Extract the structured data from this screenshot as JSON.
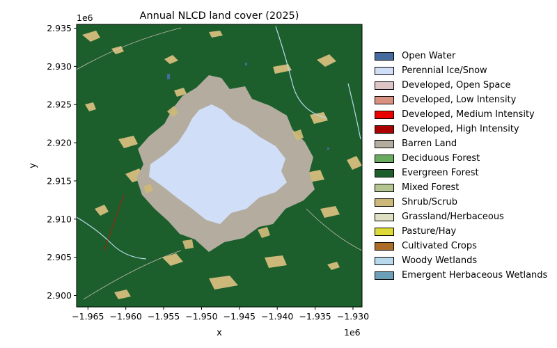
{
  "title": "Annual NLCD land cover (2025)",
  "xlabel": "x",
  "ylabel": "y",
  "x_offset_label": "1e6",
  "y_offset_label": "1e6",
  "chart_data": {
    "type": "heatmap",
    "title": "Annual NLCD land cover (2025)",
    "xlabel": "x",
    "ylabel": "y",
    "x_scale": "1e6",
    "y_scale": "1e6",
    "xlim": [
      -1.9665,
      -1.9288
    ],
    "ylim": [
      2.8985,
      2.9355
    ],
    "x_ticks": [
      "-1.965",
      "-1.960",
      "-1.955",
      "-1.950",
      "-1.945",
      "-1.940",
      "-1.935",
      "-1.930"
    ],
    "y_ticks": [
      "2.900",
      "2.905",
      "2.910",
      "2.915",
      "2.920",
      "2.925",
      "2.930",
      "2.935"
    ],
    "legend_position": "right",
    "classes": [
      {
        "name": "Open Water",
        "color": "#466b9f"
      },
      {
        "name": "Perennial Ice/Snow",
        "color": "#d1def8"
      },
      {
        "name": "Developed, Open Space",
        "color": "#dec5c5"
      },
      {
        "name": "Developed, Low Intensity",
        "color": "#d99282"
      },
      {
        "name": "Developed, Medium Intensity",
        "color": "#eb0000"
      },
      {
        "name": "Developed, High Intensity",
        "color": "#ab0000"
      },
      {
        "name": "Barren Land",
        "color": "#b3ac9f"
      },
      {
        "name": "Deciduous Forest",
        "color": "#68ab5f"
      },
      {
        "name": "Evergreen Forest",
        "color": "#1c5f2c"
      },
      {
        "name": "Mixed Forest",
        "color": "#b5c58f"
      },
      {
        "name": "Shrub/Scrub",
        "color": "#ccb879"
      },
      {
        "name": "Grassland/Herbaceous",
        "color": "#dfdfc2"
      },
      {
        "name": "Pasture/Hay",
        "color": "#dcd939"
      },
      {
        "name": "Cultivated Crops",
        "color": "#ab6c28"
      },
      {
        "name": "Woody Wetlands",
        "color": "#b8d9eb"
      },
      {
        "name": "Emergent Herbaceous Wetlands",
        "color": "#6c9fb8"
      }
    ]
  }
}
